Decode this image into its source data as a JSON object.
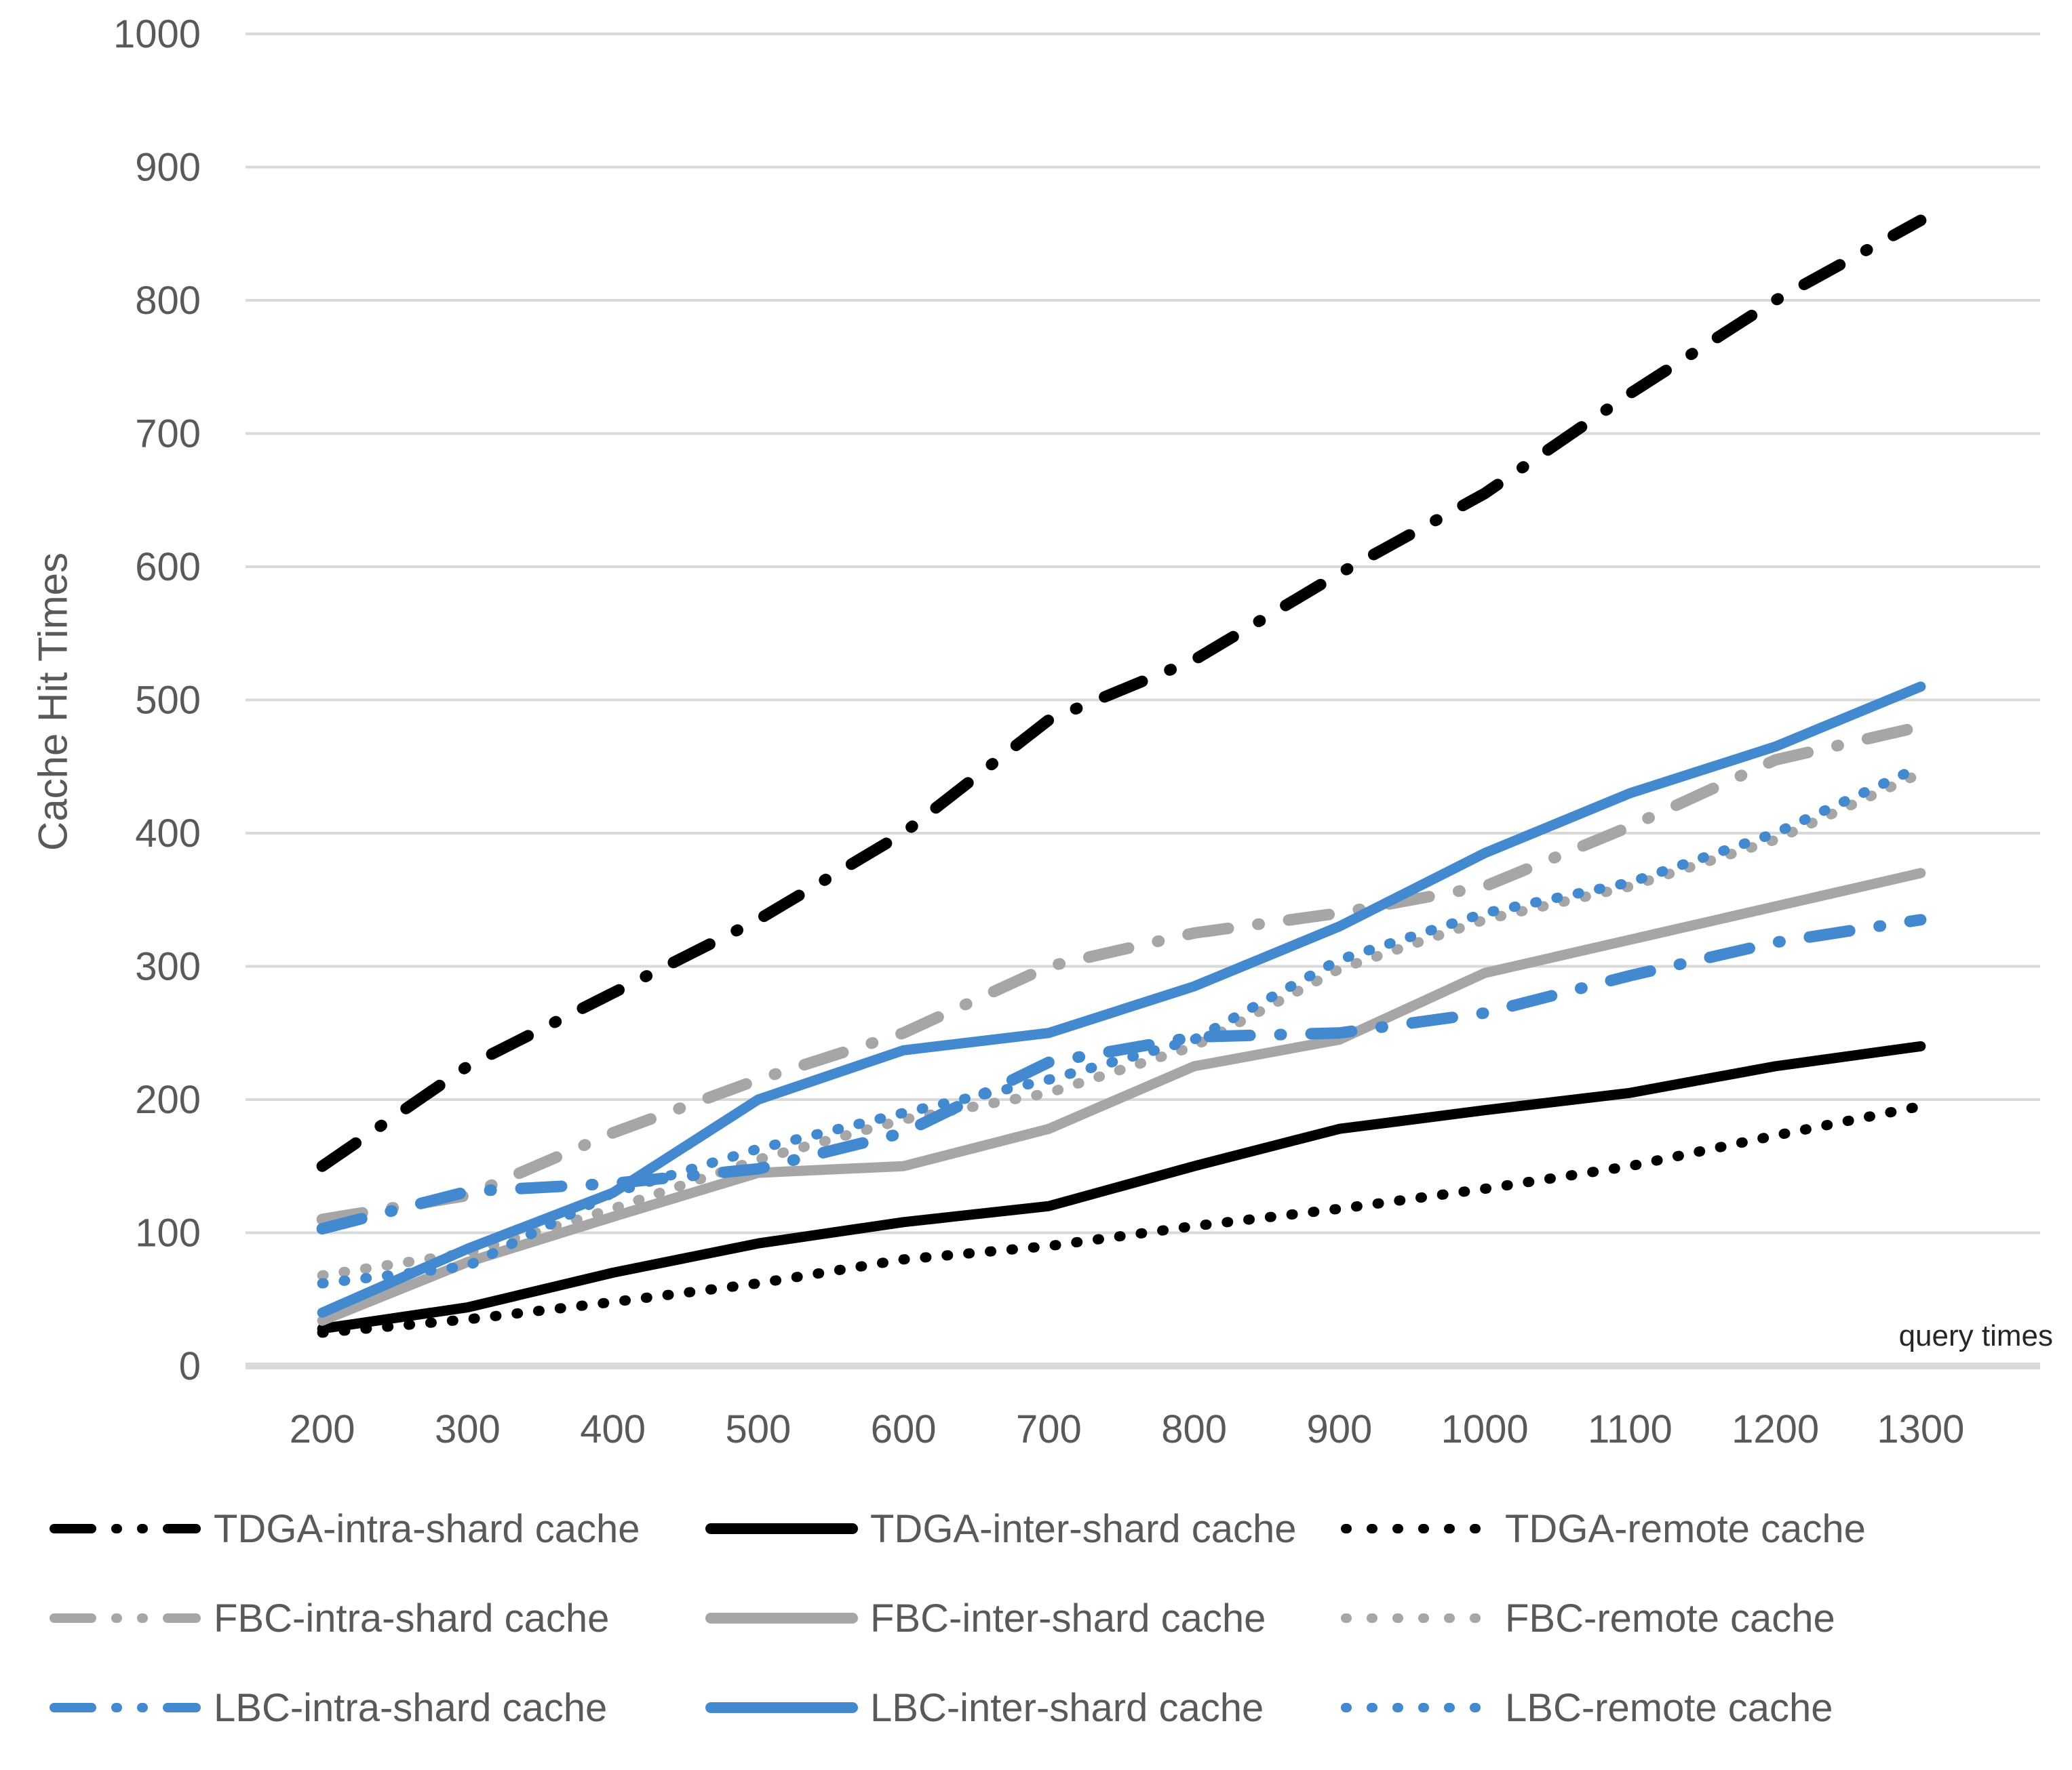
{
  "chart_data": {
    "type": "line",
    "title": "",
    "ylabel": "Cache Hit Times",
    "xlabel": "query times",
    "x": [
      200,
      300,
      400,
      500,
      600,
      700,
      800,
      900,
      1000,
      1100,
      1200,
      1300
    ],
    "ylim": [
      0,
      1000
    ],
    "yticks": [
      0,
      100,
      200,
      300,
      400,
      500,
      600,
      700,
      800,
      900,
      1000
    ],
    "grid": "horizontal",
    "legend_position": "bottom",
    "axis_color": "#d9d9d9",
    "tick_label_color": "#595959",
    "series": [
      {
        "name": "TDGA-intra-shard cache",
        "color": "#000000",
        "style": "dashdot",
        "values": [
          150,
          225,
          280,
          335,
          400,
          485,
          530,
          595,
          655,
          730,
          800,
          860
        ]
      },
      {
        "name": "TDGA-inter-shard cache",
        "color": "#000000",
        "style": "solid",
        "values": [
          28,
          44,
          70,
          92,
          108,
          120,
          150,
          178,
          192,
          205,
          225,
          240
        ]
      },
      {
        "name": "TDGA-remote cache",
        "color": "#000000",
        "style": "dotted",
        "values": [
          25,
          35,
          48,
          62,
          80,
          90,
          105,
          118,
          133,
          150,
          173,
          195
        ]
      },
      {
        "name": "FBC-intra-shard cache",
        "color": "#a6a6a6",
        "style": "dashdot",
        "values": [
          110,
          128,
          175,
          215,
          250,
          300,
          325,
          340,
          360,
          405,
          455,
          480
        ]
      },
      {
        "name": "FBC-inter-shard cache",
        "color": "#a6a6a6",
        "style": "solid",
        "values": [
          34,
          78,
          112,
          145,
          150,
          178,
          225,
          245,
          295,
          320,
          345,
          370
        ]
      },
      {
        "name": "FBC-remote cache",
        "color": "#a6a6a6",
        "style": "dotted",
        "values": [
          68,
          85,
          118,
          155,
          185,
          205,
          240,
          298,
          335,
          360,
          395,
          445
        ]
      },
      {
        "name": "LBC-intra-shard cache",
        "color": "#4289cf",
        "style": "dashdot",
        "values": [
          103,
          131,
          137,
          148,
          175,
          228,
          247,
          250,
          265,
          293,
          318,
          335
        ]
      },
      {
        "name": "LBC-inter-shard cache",
        "color": "#4289cf",
        "style": "solid",
        "values": [
          40,
          88,
          130,
          200,
          237,
          250,
          285,
          330,
          385,
          430,
          465,
          510
        ]
      },
      {
        "name": "LBC-remote cache",
        "color": "#4289cf",
        "style": "dotted",
        "values": [
          62,
          75,
          130,
          163,
          190,
          215,
          245,
          305,
          340,
          363,
          400,
          450
        ]
      }
    ]
  }
}
